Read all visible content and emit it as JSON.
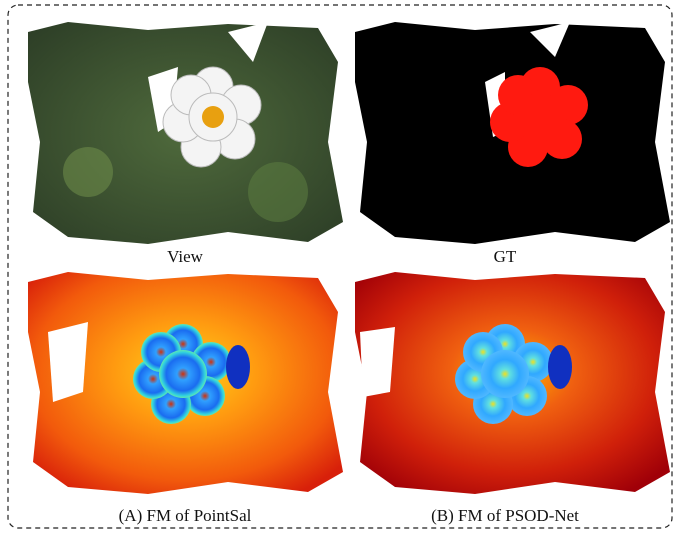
{
  "panels": [
    {
      "caption": "View"
    },
    {
      "caption": "GT"
    },
    {
      "caption": "(A) FM of PointSal"
    },
    {
      "caption": "(B) FM of PSOD-Net"
    }
  ]
}
